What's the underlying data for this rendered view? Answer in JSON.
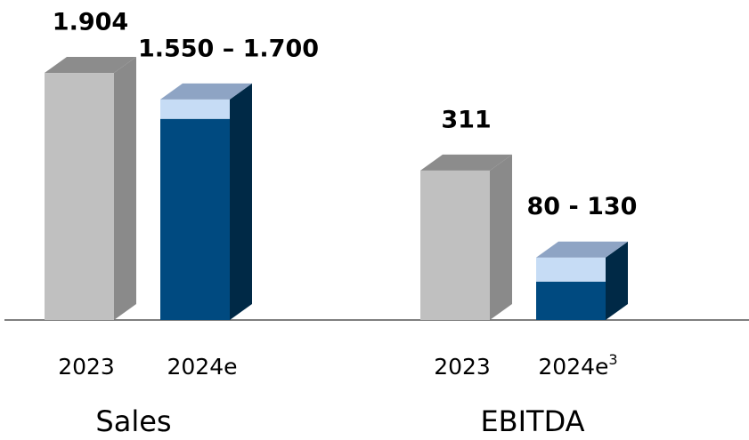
{
  "chart_data": [
    {
      "type": "bar3d",
      "title": "Sales",
      "categories": [
        "2023",
        "2024e"
      ],
      "category_notes": [
        null,
        null
      ],
      "values": [
        1904,
        1550
      ],
      "range_high": [
        null,
        1700
      ],
      "value_labels": [
        "1.904",
        "1.550 – 1.700"
      ],
      "colors": [
        "#c0c0c0",
        "#004a80"
      ],
      "range_color": "#c6dcf5",
      "ylim": [
        0,
        2466
      ]
    },
    {
      "type": "bar3d",
      "title": "EBITDA",
      "categories": [
        "2023",
        "2024e"
      ],
      "category_notes": [
        null,
        "3"
      ],
      "values": [
        311,
        80
      ],
      "range_high": [
        null,
        130
      ],
      "value_labels": [
        "311",
        "80 - 130"
      ],
      "colors": [
        "#c0c0c0",
        "#004a80"
      ],
      "range_color": "#c6dcf5",
      "ylim": [
        0,
        666
      ]
    }
  ]
}
